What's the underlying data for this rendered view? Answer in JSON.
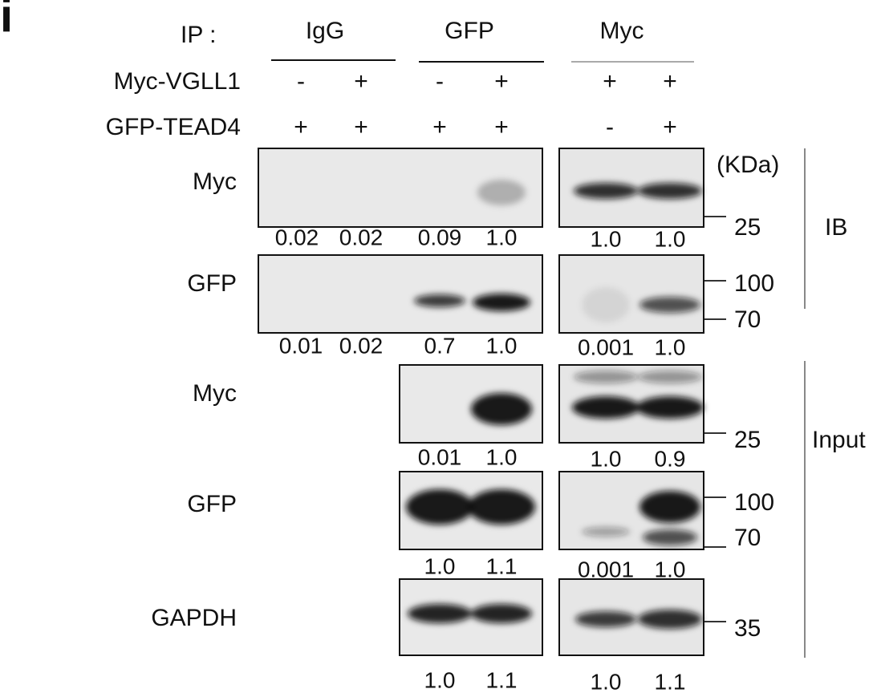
{
  "panel_label": "i",
  "ip_label": "IP :",
  "ip_groups": [
    "IgG",
    "GFP",
    "Myc"
  ],
  "conditions": [
    {
      "label": "Myc-VGLL1",
      "signs": [
        "-",
        "+",
        "-",
        "+",
        "+",
        "+"
      ]
    },
    {
      "label": "GFP-TEAD4",
      "signs": [
        "+",
        "+",
        "+",
        "+",
        "-",
        "+"
      ]
    }
  ],
  "marker_unit": "(KDa)",
  "blots": [
    {
      "label": "Myc",
      "quant_left": [
        "0.02",
        "0.02",
        "0.09",
        "1.0"
      ],
      "quant_right": [
        "1.0",
        "1.0"
      ],
      "markers": [
        "25"
      ]
    },
    {
      "label": "GFP",
      "quant_left": [
        "0.01",
        "0.02",
        "0.7",
        "1.0"
      ],
      "quant_right": [
        "0.001",
        "1.0"
      ],
      "markers": [
        "100",
        "70"
      ]
    },
    {
      "label": "Myc",
      "quant_left": [
        "0.01",
        "1.0"
      ],
      "quant_right": [
        "1.0",
        "0.9"
      ],
      "markers": [
        "25"
      ]
    },
    {
      "label": "GFP",
      "quant_left": [
        "1.0",
        "1.1"
      ],
      "quant_right": [
        "0.001",
        "1.0"
      ],
      "markers": [
        "100",
        "70"
      ]
    },
    {
      "label": "GAPDH",
      "quant_left": [
        "1.0",
        "1.1"
      ],
      "quant_right": [
        "1.0",
        "1.1"
      ],
      "markers": [
        "35"
      ]
    }
  ],
  "brackets": [
    "IB",
    "Input"
  ]
}
